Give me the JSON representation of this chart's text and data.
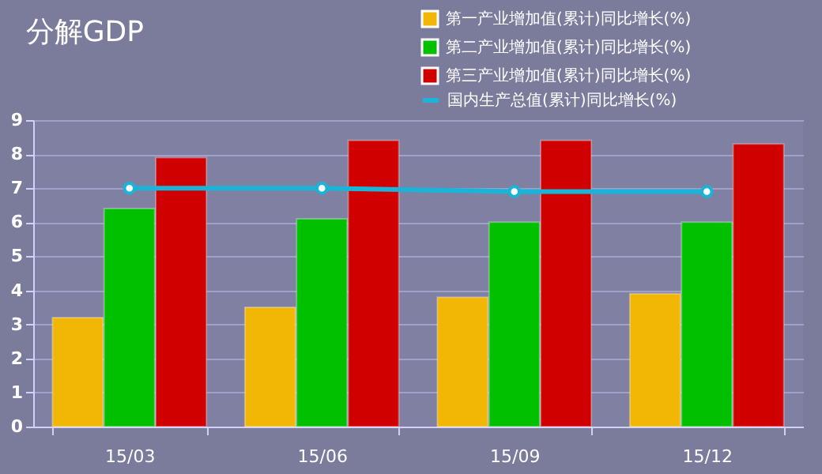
{
  "chart_data": {
    "type": "bar",
    "title": "分解GDP",
    "categories": [
      "15/03",
      "15/06",
      "15/09",
      "15/12"
    ],
    "series": [
      {
        "name": "第一产业增加值(累计)同比增长(%)",
        "color": "#f2b705",
        "values": [
          3.2,
          3.5,
          3.8,
          3.9
        ]
      },
      {
        "name": "第二产业增加值(累计)同比增长(%)",
        "color": "#00c000",
        "values": [
          6.4,
          6.1,
          6.0,
          6.0
        ]
      },
      {
        "name": "第三产业增加值(累计)同比增长(%)",
        "color": "#d00000",
        "values": [
          7.9,
          8.4,
          8.4,
          8.3
        ]
      },
      {
        "name": "国内生产总值(累计)同比增长(%)",
        "color": "#1ab4d8",
        "type": "line",
        "values": [
          7.0,
          7.0,
          6.9,
          6.9
        ]
      }
    ],
    "ylim": [
      0,
      9
    ],
    "yticks": [
      0,
      1,
      2,
      3,
      4,
      5,
      6,
      7,
      8,
      9
    ],
    "grid": "y",
    "legend": "top right",
    "marker": "circle"
  }
}
